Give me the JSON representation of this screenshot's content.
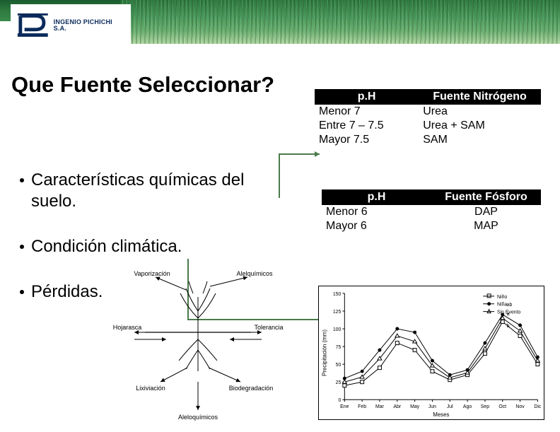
{
  "logo": {
    "company": "INGENIO PICHICHI S.A.",
    "reg": "®"
  },
  "title": "Que Fuente Seleccionar?",
  "bullets": [
    "Características  químicas del suelo.",
    "Condición climática.",
    "Pérdidas."
  ],
  "table_nitrogen": {
    "headers": [
      "p.H",
      "Fuente Nitrógeno"
    ],
    "rows": [
      [
        "Menor 7",
        "Urea"
      ],
      [
        "Entre 7 – 7.5",
        "Urea + SAM"
      ],
      [
        "Mayor 7.5",
        "SAM"
      ]
    ]
  },
  "table_phosphorus": {
    "headers": [
      "p.H",
      "Fuente Fósforo"
    ],
    "rows": [
      [
        "Menor 6",
        "DAP"
      ],
      [
        "Mayor 6",
        "MAP"
      ]
    ]
  },
  "loss_diagram": {
    "labels": {
      "top_left": "Vaporización",
      "top_right": "Alelquímicos",
      "left": "Hojarasca",
      "right": "Tolerancia",
      "bottom_left": "Lixiviación",
      "bottom_right": "Biodegradación",
      "bottom": "Aleloquímicos"
    },
    "line_color": "#000000",
    "fontsize": 9
  },
  "precip_chart": {
    "type": "line",
    "title_fontsize": 8,
    "ylabel": "Precipitación (mm)",
    "xlabel": "Meses",
    "xticks": [
      "Ene",
      "Feb",
      "Mar",
      "Abr",
      "May",
      "Jun",
      "Jul",
      "Ago",
      "Sep",
      "Oct",
      "Nov",
      "Dic"
    ],
    "ylim": [
      0,
      150
    ],
    "ytick_step": 25,
    "grid_color": "#cccccc",
    "background_color": "#ffffff",
    "axis_color": "#000000",
    "label_fontsize": 8,
    "tick_fontsize": 7,
    "series": [
      {
        "name": "Niño",
        "marker": "square-open",
        "color": "#000000",
        "line_width": 1,
        "values": [
          20,
          25,
          45,
          80,
          70,
          40,
          28,
          35,
          65,
          110,
          90,
          50
        ]
      },
      {
        "name": "Niña",
        "marker": "circle-filled",
        "color": "#000000",
        "line_width": 1,
        "values": [
          30,
          40,
          70,
          100,
          95,
          55,
          35,
          42,
          80,
          120,
          105,
          60
        ]
      },
      {
        "name": "Sin Evento",
        "marker": "triangle-open",
        "color": "#000000",
        "line_width": 1,
        "values": [
          25,
          32,
          58,
          90,
          82,
          48,
          31,
          38,
          72,
          115,
          97,
          55
        ]
      }
    ],
    "annotations": [
      "a",
      "b",
      "ab"
    ],
    "legend_position": "top-right"
  },
  "colors": {
    "header_dark": "#1a5c2e",
    "header_mid": "#3a8a4c",
    "logo_navy": "#0b2a5b",
    "arrow": "#4a7a4a",
    "black": "#000000",
    "white": "#ffffff"
  }
}
